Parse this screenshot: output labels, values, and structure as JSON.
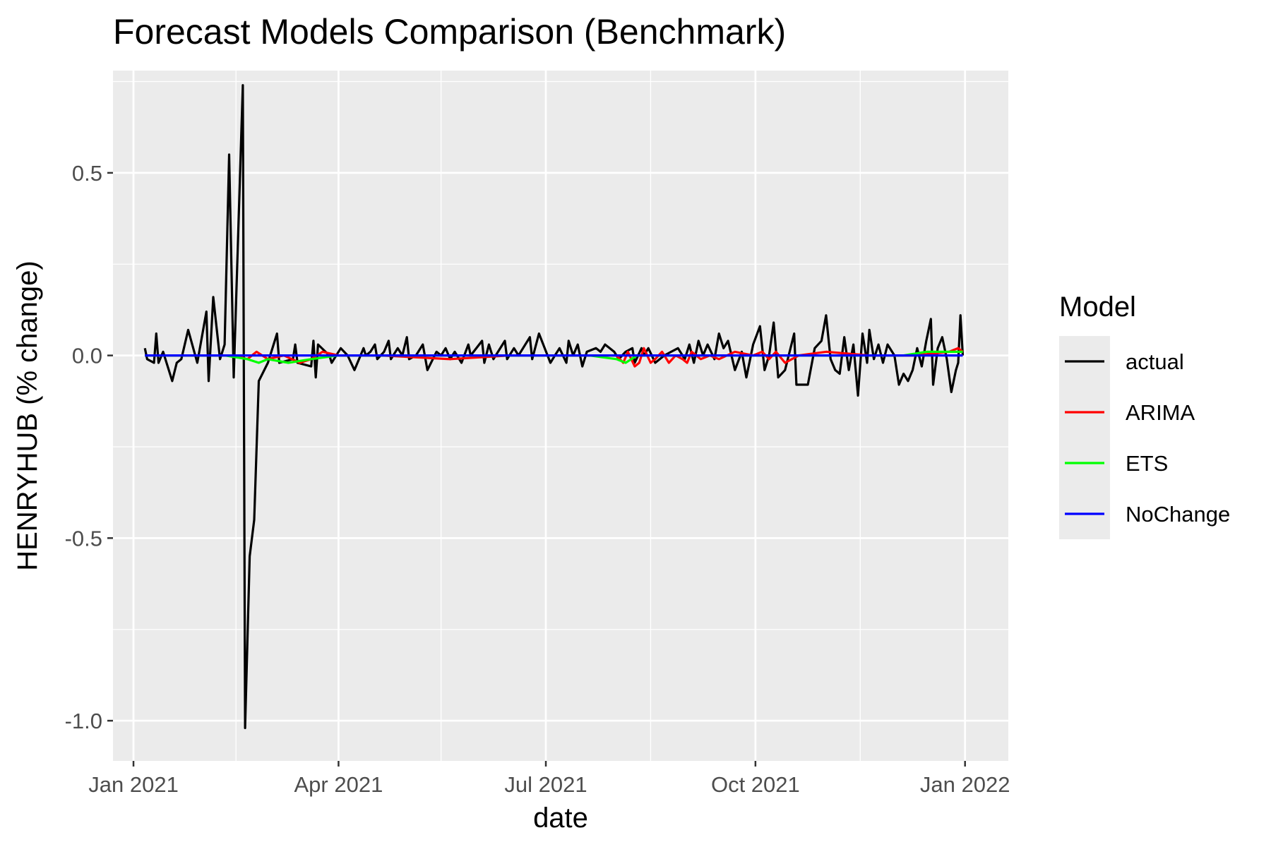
{
  "chart_data": {
    "type": "line",
    "title": "Forecast Models Comparison (Benchmark)",
    "xlabel": "date",
    "ylabel": "HENRYHUB (% change)",
    "x_range": [
      "2020-12-23",
      "2022-01-20"
    ],
    "ylim": [
      -1.11,
      0.78
    ],
    "x_ticks": [
      {
        "date": "2021-01-01",
        "label": "Jan 2021"
      },
      {
        "date": "2021-04-01",
        "label": "Apr 2021"
      },
      {
        "date": "2021-07-01",
        "label": "Jul 2021"
      },
      {
        "date": "2021-10-01",
        "label": "Oct 2021"
      },
      {
        "date": "2022-01-01",
        "label": "Jan 2022"
      }
    ],
    "x_minor": [
      "2021-02-15",
      "2021-05-16",
      "2021-08-16",
      "2021-11-16"
    ],
    "y_ticks": [
      {
        "value": 0.5,
        "label": "0.5"
      },
      {
        "value": 0.0,
        "label": "0.0"
      },
      {
        "value": -0.5,
        "label": "-0.5"
      },
      {
        "value": -1.0,
        "label": "-1.0"
      }
    ],
    "y_minor": [
      0.75,
      0.25,
      -0.25,
      -0.75
    ],
    "grid": true,
    "background": "#ebebeb",
    "legend": {
      "title": "Model",
      "position": "right"
    },
    "series": [
      {
        "name": "actual",
        "color": "#000000",
        "points": [
          [
            "2021-01-06",
            0.02
          ],
          [
            "2021-01-07",
            -0.01
          ],
          [
            "2021-01-10",
            -0.02
          ],
          [
            "2021-01-11",
            0.06
          ],
          [
            "2021-01-12",
            -0.02
          ],
          [
            "2021-01-14",
            0.01
          ],
          [
            "2021-01-18",
            -0.07
          ],
          [
            "2021-01-20",
            -0.02
          ],
          [
            "2021-01-22",
            -0.01
          ],
          [
            "2021-01-25",
            0.07
          ],
          [
            "2021-01-29",
            -0.02
          ],
          [
            "2021-02-02",
            0.12
          ],
          [
            "2021-02-03",
            -0.07
          ],
          [
            "2021-02-05",
            0.16
          ],
          [
            "2021-02-08",
            -0.01
          ],
          [
            "2021-02-10",
            0.03
          ],
          [
            "2021-02-12",
            0.55
          ],
          [
            "2021-02-14",
            -0.06
          ],
          [
            "2021-02-18",
            0.74
          ],
          [
            "2021-02-19",
            -1.02
          ],
          [
            "2021-02-21",
            -0.55
          ],
          [
            "2021-02-23",
            -0.45
          ],
          [
            "2021-02-25",
            -0.07
          ],
          [
            "2021-03-01",
            -0.02
          ],
          [
            "2021-03-05",
            0.06
          ],
          [
            "2021-03-06",
            -0.02
          ],
          [
            "2021-03-12",
            -0.01
          ],
          [
            "2021-03-13",
            0.03
          ],
          [
            "2021-03-14",
            -0.02
          ],
          [
            "2021-03-20",
            -0.03
          ],
          [
            "2021-03-21",
            0.04
          ],
          [
            "2021-03-22",
            -0.06
          ],
          [
            "2021-03-23",
            0.03
          ],
          [
            "2021-03-28",
            0.0
          ],
          [
            "2021-03-29",
            -0.02
          ],
          [
            "2021-04-02",
            0.02
          ],
          [
            "2021-04-05",
            0.0
          ],
          [
            "2021-04-08",
            -0.04
          ],
          [
            "2021-04-12",
            0.02
          ],
          [
            "2021-04-13",
            0.0
          ],
          [
            "2021-04-15",
            0.01
          ],
          [
            "2021-04-17",
            0.03
          ],
          [
            "2021-04-18",
            -0.01
          ],
          [
            "2021-04-21",
            0.01
          ],
          [
            "2021-04-23",
            0.04
          ],
          [
            "2021-04-24",
            -0.01
          ],
          [
            "2021-04-27",
            0.02
          ],
          [
            "2021-04-29",
            0.0
          ],
          [
            "2021-05-01",
            0.05
          ],
          [
            "2021-05-02",
            -0.01
          ],
          [
            "2021-05-05",
            0.0
          ],
          [
            "2021-05-08",
            0.03
          ],
          [
            "2021-05-10",
            -0.04
          ],
          [
            "2021-05-14",
            0.01
          ],
          [
            "2021-05-16",
            0.0
          ],
          [
            "2021-05-18",
            0.02
          ],
          [
            "2021-05-20",
            -0.01
          ],
          [
            "2021-05-22",
            0.01
          ],
          [
            "2021-05-25",
            -0.02
          ],
          [
            "2021-05-28",
            0.03
          ],
          [
            "2021-05-29",
            0.0
          ],
          [
            "2021-06-03",
            0.04
          ],
          [
            "2021-06-04",
            -0.02
          ],
          [
            "2021-06-06",
            0.03
          ],
          [
            "2021-06-08",
            -0.01
          ],
          [
            "2021-06-10",
            0.01
          ],
          [
            "2021-06-13",
            0.04
          ],
          [
            "2021-06-14",
            -0.01
          ],
          [
            "2021-06-17",
            0.02
          ],
          [
            "2021-06-19",
            0.0
          ],
          [
            "2021-06-24",
            0.05
          ],
          [
            "2021-06-25",
            -0.01
          ],
          [
            "2021-06-28",
            0.06
          ],
          [
            "2021-07-03",
            -0.02
          ],
          [
            "2021-07-05",
            0.0
          ],
          [
            "2021-07-07",
            0.02
          ],
          [
            "2021-07-10",
            -0.02
          ],
          [
            "2021-07-11",
            0.04
          ],
          [
            "2021-07-13",
            0.0
          ],
          [
            "2021-07-15",
            0.03
          ],
          [
            "2021-07-17",
            -0.03
          ],
          [
            "2021-07-19",
            0.01
          ],
          [
            "2021-07-23",
            0.02
          ],
          [
            "2021-07-25",
            0.01
          ],
          [
            "2021-07-27",
            0.03
          ],
          [
            "2021-07-29",
            0.02
          ],
          [
            "2021-07-31",
            0.01
          ],
          [
            "2021-08-02",
            -0.01
          ],
          [
            "2021-08-05",
            0.01
          ],
          [
            "2021-08-08",
            0.02
          ],
          [
            "2021-08-09",
            -0.02
          ],
          [
            "2021-08-12",
            0.02
          ],
          [
            "2021-08-13",
            0.0
          ],
          [
            "2021-08-15",
            0.02
          ],
          [
            "2021-08-18",
            -0.02
          ],
          [
            "2021-08-22",
            0.0
          ],
          [
            "2021-08-25",
            0.01
          ],
          [
            "2021-08-28",
            0.02
          ],
          [
            "2021-08-31",
            -0.01
          ],
          [
            "2021-09-02",
            0.03
          ],
          [
            "2021-09-04",
            -0.02
          ],
          [
            "2021-09-06",
            0.04
          ],
          [
            "2021-09-08",
            0.0
          ],
          [
            "2021-09-10",
            0.03
          ],
          [
            "2021-09-13",
            -0.01
          ],
          [
            "2021-09-15",
            0.06
          ],
          [
            "2021-09-17",
            0.02
          ],
          [
            "2021-09-19",
            0.04
          ],
          [
            "2021-09-22",
            -0.04
          ],
          [
            "2021-09-25",
            0.01
          ],
          [
            "2021-09-27",
            -0.06
          ],
          [
            "2021-09-30",
            0.03
          ],
          [
            "2021-10-03",
            0.08
          ],
          [
            "2021-10-05",
            -0.04
          ],
          [
            "2021-10-07",
            0.0
          ],
          [
            "2021-10-09",
            0.09
          ],
          [
            "2021-10-11",
            -0.06
          ],
          [
            "2021-10-14",
            -0.04
          ],
          [
            "2021-10-18",
            0.06
          ],
          [
            "2021-10-19",
            -0.08
          ],
          [
            "2021-10-24",
            -0.08
          ],
          [
            "2021-10-27",
            0.02
          ],
          [
            "2021-10-30",
            0.04
          ],
          [
            "2021-11-01",
            0.11
          ],
          [
            "2021-11-03",
            -0.01
          ],
          [
            "2021-11-05",
            -0.04
          ],
          [
            "2021-11-07",
            -0.05
          ],
          [
            "2021-11-09",
            0.05
          ],
          [
            "2021-11-11",
            -0.04
          ],
          [
            "2021-11-13",
            0.03
          ],
          [
            "2021-11-15",
            -0.11
          ],
          [
            "2021-11-17",
            0.06
          ],
          [
            "2021-11-19",
            -0.02
          ],
          [
            "2021-11-20",
            0.07
          ],
          [
            "2021-11-22",
            -0.01
          ],
          [
            "2021-11-24",
            0.03
          ],
          [
            "2021-11-26",
            -0.02
          ],
          [
            "2021-11-28",
            0.03
          ],
          [
            "2021-12-01",
            0.0
          ],
          [
            "2021-12-03",
            -0.08
          ],
          [
            "2021-12-05",
            -0.05
          ],
          [
            "2021-12-07",
            -0.07
          ],
          [
            "2021-12-09",
            -0.04
          ],
          [
            "2021-12-11",
            0.02
          ],
          [
            "2021-12-13",
            -0.03
          ],
          [
            "2021-12-15",
            0.04
          ],
          [
            "2021-12-17",
            0.1
          ],
          [
            "2021-12-18",
            -0.08
          ],
          [
            "2021-12-20",
            0.02
          ],
          [
            "2021-12-22",
            0.05
          ],
          [
            "2021-12-24",
            -0.01
          ],
          [
            "2021-12-26",
            -0.1
          ],
          [
            "2021-12-28",
            -0.04
          ],
          [
            "2021-12-29",
            -0.02
          ],
          [
            "2021-12-30",
            0.11
          ],
          [
            "2021-12-31",
            0.0
          ]
        ]
      },
      {
        "name": "ARIMA",
        "color": "#ff0000",
        "points": [
          [
            "2021-01-06",
            0.0
          ],
          [
            "2021-01-20",
            0.0
          ],
          [
            "2021-02-01",
            0.0
          ],
          [
            "2021-02-14",
            0.0
          ],
          [
            "2021-02-20",
            -0.01
          ],
          [
            "2021-02-24",
            0.01
          ],
          [
            "2021-03-01",
            -0.01
          ],
          [
            "2021-03-08",
            0.0
          ],
          [
            "2021-03-15",
            -0.02
          ],
          [
            "2021-03-20",
            -0.01
          ],
          [
            "2021-03-25",
            0.01
          ],
          [
            "2021-04-01",
            0.0
          ],
          [
            "2021-04-20",
            0.0
          ],
          [
            "2021-05-20",
            -0.01
          ],
          [
            "2021-06-15",
            0.0
          ],
          [
            "2021-07-15",
            0.0
          ],
          [
            "2021-08-01",
            0.0
          ],
          [
            "2021-08-04",
            -0.02
          ],
          [
            "2021-08-06",
            0.01
          ],
          [
            "2021-08-09",
            -0.03
          ],
          [
            "2021-08-11",
            -0.02
          ],
          [
            "2021-08-13",
            0.02
          ],
          [
            "2021-08-16",
            -0.02
          ],
          [
            "2021-08-18",
            -0.01
          ],
          [
            "2021-08-21",
            0.01
          ],
          [
            "2021-08-24",
            -0.02
          ],
          [
            "2021-08-27",
            0.0
          ],
          [
            "2021-08-30",
            -0.01
          ],
          [
            "2021-09-01",
            -0.02
          ],
          [
            "2021-09-03",
            0.01
          ],
          [
            "2021-09-07",
            -0.01
          ],
          [
            "2021-09-11",
            0.0
          ],
          [
            "2021-09-15",
            -0.01
          ],
          [
            "2021-09-22",
            0.01
          ],
          [
            "2021-09-30",
            0.0
          ],
          [
            "2021-10-04",
            0.01
          ],
          [
            "2021-10-07",
            -0.01
          ],
          [
            "2021-10-10",
            0.01
          ],
          [
            "2021-10-14",
            -0.02
          ],
          [
            "2021-10-20",
            0.0
          ],
          [
            "2021-11-01",
            0.01
          ],
          [
            "2021-11-20",
            0.0
          ],
          [
            "2021-12-10",
            0.0
          ],
          [
            "2021-12-25",
            0.01
          ],
          [
            "2021-12-29",
            0.02
          ],
          [
            "2021-12-31",
            0.01
          ]
        ]
      },
      {
        "name": "ETS",
        "color": "#00ff00",
        "points": [
          [
            "2021-01-06",
            0.0
          ],
          [
            "2021-02-10",
            0.0
          ],
          [
            "2021-02-20",
            -0.01
          ],
          [
            "2021-02-25",
            -0.02
          ],
          [
            "2021-03-01",
            -0.01
          ],
          [
            "2021-03-10",
            -0.02
          ],
          [
            "2021-03-20",
            -0.01
          ],
          [
            "2021-04-01",
            0.0
          ],
          [
            "2021-07-20",
            0.0
          ],
          [
            "2021-08-01",
            -0.01
          ],
          [
            "2021-08-05",
            -0.02
          ],
          [
            "2021-08-10",
            0.0
          ],
          [
            "2021-10-01",
            0.0
          ],
          [
            "2021-11-10",
            0.0
          ],
          [
            "2021-12-05",
            0.0
          ],
          [
            "2021-12-15",
            0.01
          ],
          [
            "2021-12-31",
            0.01
          ]
        ]
      },
      {
        "name": "NoChange",
        "color": "#0000ff",
        "points": [
          [
            "2021-01-06",
            0.0
          ],
          [
            "2021-12-31",
            0.0
          ]
        ]
      }
    ]
  }
}
